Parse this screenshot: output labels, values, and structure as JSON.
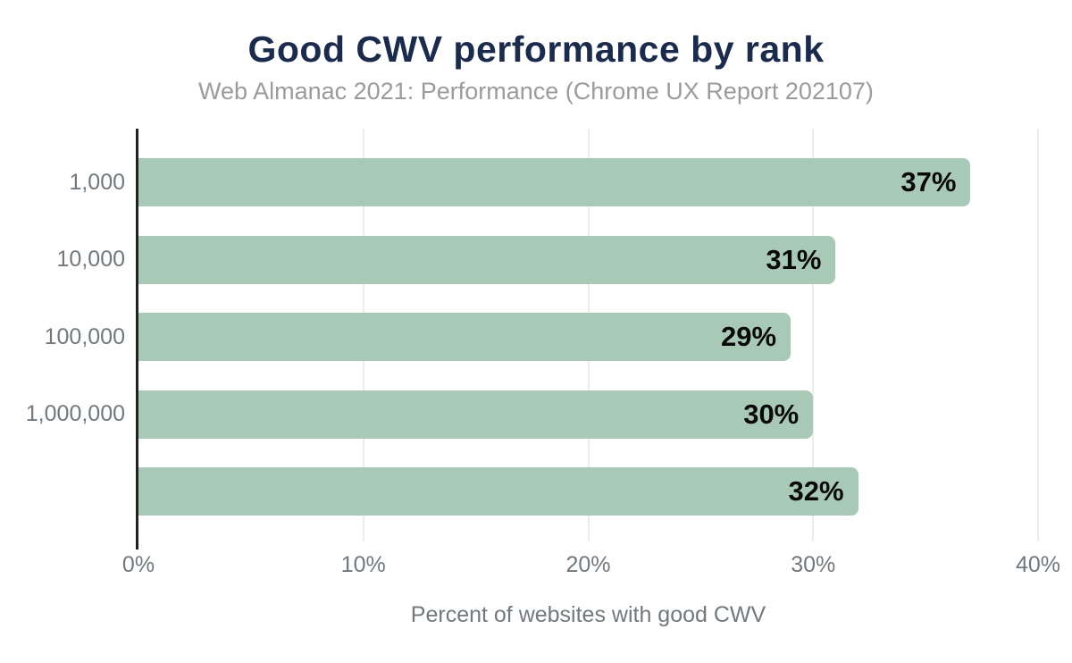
{
  "title": "Good CWV performance by rank",
  "subtitle": "Web Almanac 2021: Performance (Chrome UX Report 202107)",
  "chart_data": {
    "type": "bar",
    "orientation": "horizontal",
    "title": "Good CWV performance by rank",
    "subtitle": "Web Almanac 2021: Performance (Chrome UX Report 202107)",
    "categories": [
      "1,000",
      "10,000",
      "100,000",
      "1,000,000",
      ""
    ],
    "values": [
      37,
      31,
      29,
      30,
      32
    ],
    "value_labels": [
      "37%",
      "31%",
      "29%",
      "30%",
      "32%"
    ],
    "xlabel": "Percent of websites with good CWV",
    "ylabel": "",
    "xlim": [
      0,
      40
    ],
    "x_tick_values": [
      0,
      10,
      20,
      30,
      40
    ],
    "x_tick_labels": [
      "0%",
      "10%",
      "20%",
      "30%",
      "40%"
    ],
    "grid": true,
    "legend": false,
    "colors": {
      "background": "#ffffff",
      "bar": "#a9c9b7",
      "title": "#1b2b4e",
      "subtitle": "#9b9b9b",
      "axis_text": "#71787e",
      "value_label": "#0a0a0a",
      "axis_line": "#222222",
      "gridline": "#ededed"
    }
  }
}
